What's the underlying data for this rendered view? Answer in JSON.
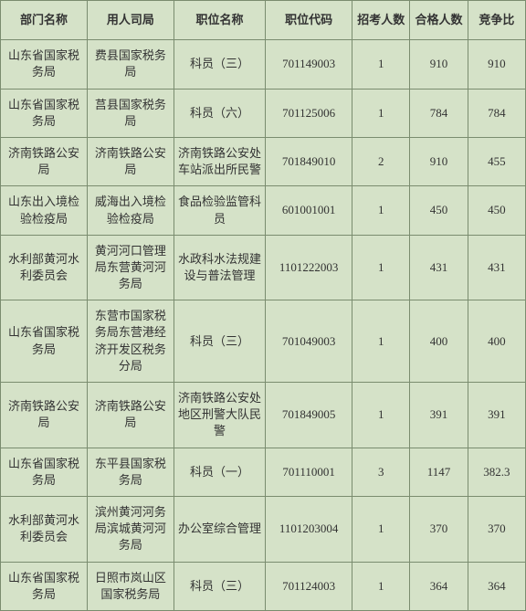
{
  "table": {
    "headers": {
      "dept": "部门名称",
      "bureau": "用人司局",
      "position": "职位名称",
      "code": "职位代码",
      "recruit": "招考人数",
      "qualified": "合格人数",
      "ratio": "竞争比"
    },
    "rows": [
      {
        "dept": "山东省国家税务局",
        "bureau": "费县国家税务局",
        "position": "科员（三）",
        "code": "701149003",
        "recruit": "1",
        "qualified": "910",
        "ratio": "910"
      },
      {
        "dept": "山东省国家税务局",
        "bureau": "莒县国家税务局",
        "position": "科员（六）",
        "code": "701125006",
        "recruit": "1",
        "qualified": "784",
        "ratio": "784"
      },
      {
        "dept": "济南铁路公安局",
        "bureau": "济南铁路公安局",
        "position": "济南铁路公安处车站派出所民警",
        "code": "701849010",
        "recruit": "2",
        "qualified": "910",
        "ratio": "455"
      },
      {
        "dept": "山东出入境检验检疫局",
        "bureau": "威海出入境检验检疫局",
        "position": "食品检验监管科员",
        "code": "601001001",
        "recruit": "1",
        "qualified": "450",
        "ratio": "450"
      },
      {
        "dept": "水利部黄河水利委员会",
        "bureau": "黄河河口管理局东营黄河河务局",
        "position": "水政科水法规建设与普法管理",
        "code": "1101222003",
        "recruit": "1",
        "qualified": "431",
        "ratio": "431"
      },
      {
        "dept": "山东省国家税务局",
        "bureau": "东营市国家税务局东营港经济开发区税务分局",
        "position": "科员（三）",
        "code": "701049003",
        "recruit": "1",
        "qualified": "400",
        "ratio": "400"
      },
      {
        "dept": "济南铁路公安局",
        "bureau": "济南铁路公安局",
        "position": "济南铁路公安处地区刑警大队民警",
        "code": "701849005",
        "recruit": "1",
        "qualified": "391",
        "ratio": "391"
      },
      {
        "dept": "山东省国家税务局",
        "bureau": "东平县国家税务局",
        "position": "科员（一）",
        "code": "701110001",
        "recruit": "3",
        "qualified": "1147",
        "ratio": "382.3"
      },
      {
        "dept": "水利部黄河水利委员会",
        "bureau": "滨州黄河河务局滨城黄河河务局",
        "position": "办公室综合管理",
        "code": "1101203004",
        "recruit": "1",
        "qualified": "370",
        "ratio": "370"
      },
      {
        "dept": "山东省国家税务局",
        "bureau": "日照市岚山区国家税务局",
        "position": "科员（三）",
        "code": "701124003",
        "recruit": "1",
        "qualified": "364",
        "ratio": "364"
      }
    ],
    "styling": {
      "background_color": "#d5e2c8",
      "border_color": "#7a8c6f",
      "text_color": "#333",
      "font_size": 13,
      "header_font_weight": "bold"
    }
  }
}
